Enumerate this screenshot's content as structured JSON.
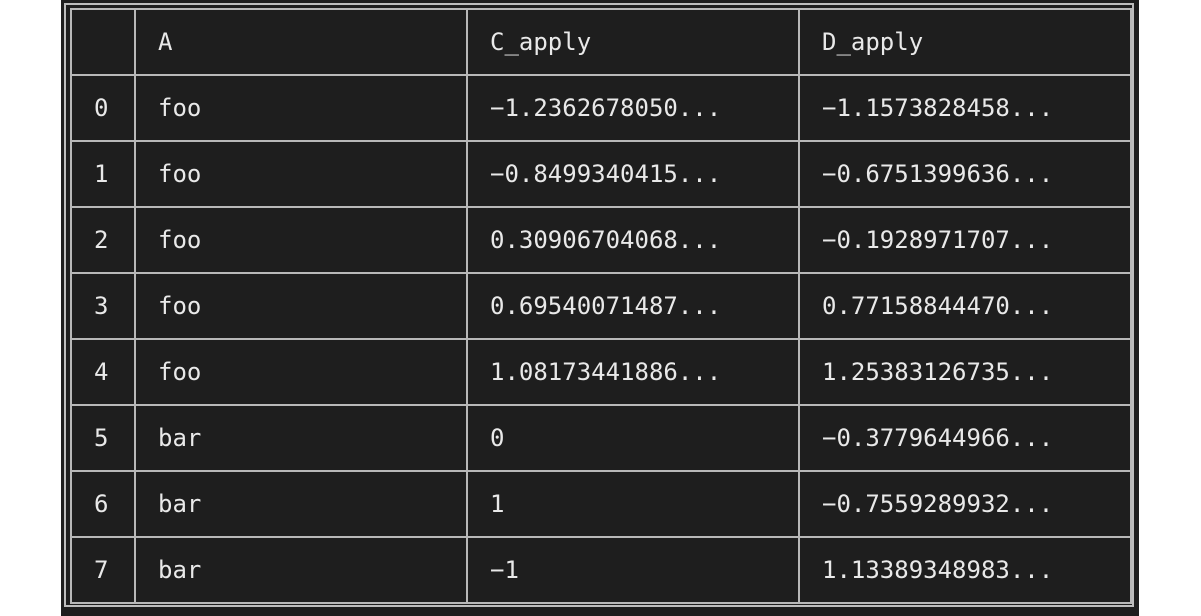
{
  "table": {
    "columns": [
      "",
      "A",
      "C_apply",
      "D_apply"
    ],
    "rows": [
      [
        "0",
        "foo",
        "−1.2362678050...",
        "−1.1573828458..."
      ],
      [
        "1",
        "foo",
        "−0.8499340415...",
        "−0.6751399636..."
      ],
      [
        "2",
        "foo",
        "0.30906704068...",
        "−0.1928971707..."
      ],
      [
        "3",
        "foo",
        "0.69540071487...",
        "0.77158844470..."
      ],
      [
        "4",
        "foo",
        "1.08173441886...",
        "1.25383126735..."
      ],
      [
        "5",
        "bar",
        "0",
        "−0.3779644966..."
      ],
      [
        "6",
        "bar",
        "1",
        "−0.7559289932..."
      ],
      [
        "7",
        "bar",
        "−1",
        "1.13389348983..."
      ]
    ]
  }
}
